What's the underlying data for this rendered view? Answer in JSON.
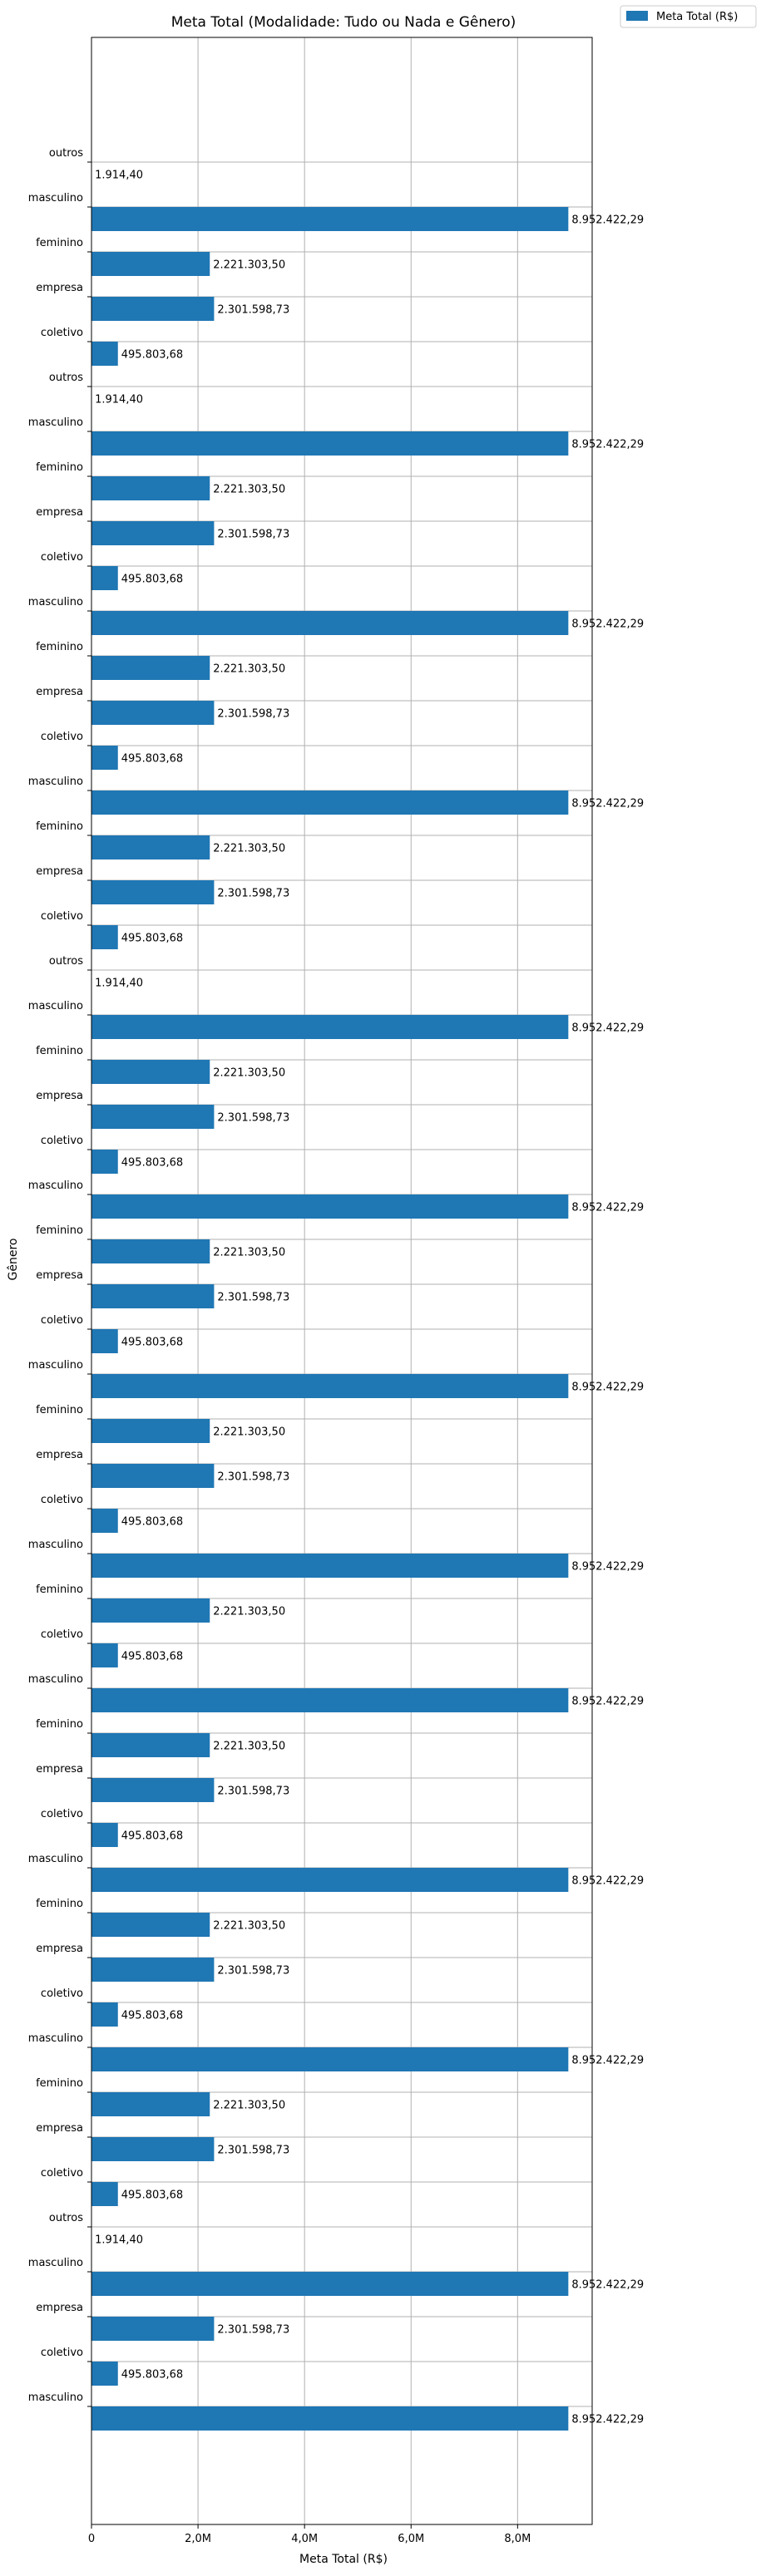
{
  "chart_data": {
    "type": "bar",
    "orientation": "horizontal",
    "title": "Meta Total (Modalidade: Tudo ou Nada e Gênero)",
    "xlabel": "Meta Total (R$)",
    "ylabel": "Gênero",
    "xlim": [
      0,
      9400000
    ],
    "x_ticks": [
      0,
      2000000,
      4000000,
      6000000,
      8000000
    ],
    "x_tick_labels": [
      "0",
      "2,0M",
      "4,0M",
      "6,0M",
      "8,0M"
    ],
    "grid": true,
    "legend_placement": "top-right (outside plot)",
    "series": [
      {
        "name": "Meta Total (R$)",
        "color": "#1f77b4"
      }
    ],
    "categories": [
      "outros",
      "masculino",
      "feminino",
      "empresa",
      "coletivo",
      "outros",
      "masculino",
      "feminino",
      "empresa",
      "coletivo",
      "masculino",
      "feminino",
      "empresa",
      "coletivo",
      "masculino",
      "feminino",
      "empresa",
      "coletivo",
      "outros",
      "masculino",
      "feminino",
      "empresa",
      "coletivo",
      "masculino",
      "feminino",
      "empresa",
      "coletivo",
      "masculino",
      "feminino",
      "empresa",
      "coletivo",
      "masculino",
      "feminino",
      "coletivo",
      "masculino",
      "feminino",
      "empresa",
      "coletivo",
      "masculino",
      "feminino",
      "empresa",
      "coletivo",
      "masculino",
      "feminino",
      "empresa",
      "coletivo",
      "outros",
      "masculino",
      "empresa",
      "coletivo",
      "masculino"
    ],
    "values": [
      1914.4,
      8952422.29,
      2221303.5,
      2301598.73,
      495803.68,
      1914.4,
      8952422.29,
      2221303.5,
      2301598.73,
      495803.68,
      8952422.29,
      2221303.5,
      2301598.73,
      495803.68,
      8952422.29,
      2221303.5,
      2301598.73,
      495803.68,
      1914.4,
      8952422.29,
      2221303.5,
      2301598.73,
      495803.68,
      8952422.29,
      2221303.5,
      2301598.73,
      495803.68,
      8952422.29,
      2221303.5,
      2301598.73,
      495803.68,
      8952422.29,
      2221303.5,
      495803.68,
      8952422.29,
      2221303.5,
      2301598.73,
      495803.68,
      8952422.29,
      2221303.5,
      2301598.73,
      495803.68,
      8952422.29,
      2221303.5,
      2301598.73,
      495803.68,
      1914.4,
      8952422.29,
      2301598.73,
      495803.68,
      8952422.29
    ],
    "value_labels": [
      "1.914,40",
      "8.952.422,29",
      "2.221.303,50",
      "2.301.598,73",
      "495.803,68",
      "1.914,40",
      "8.952.422,29",
      "2.221.303,50",
      "2.301.598,73",
      "495.803,68",
      "8.952.422,29",
      "2.221.303,50",
      "2.301.598,73",
      "495.803,68",
      "8.952.422,29",
      "2.221.303,50",
      "2.301.598,73",
      "495.803,68",
      "1.914,40",
      "8.952.422,29",
      "2.221.303,50",
      "2.301.598,73",
      "495.803,68",
      "8.952.422,29",
      "2.221.303,50",
      "2.301.598,73",
      "495.803,68",
      "8.952.422,29",
      "2.221.303,50",
      "2.301.598,73",
      "495.803,68",
      "8.952.422,29",
      "2.221.303,50",
      "495.803,68",
      "8.952.422,29",
      "2.221.303,50",
      "2.301.598,73",
      "495.803,68",
      "8.952.422,29",
      "2.221.303,50",
      "2.301.598,73",
      "495.803,68",
      "8.952.422,29",
      "2.221.303,50",
      "2.301.598,73",
      "495.803,68",
      "1.914,40",
      "8.952.422,29",
      "2.301.598,73",
      "495.803,68",
      "8.952.422,29"
    ]
  }
}
